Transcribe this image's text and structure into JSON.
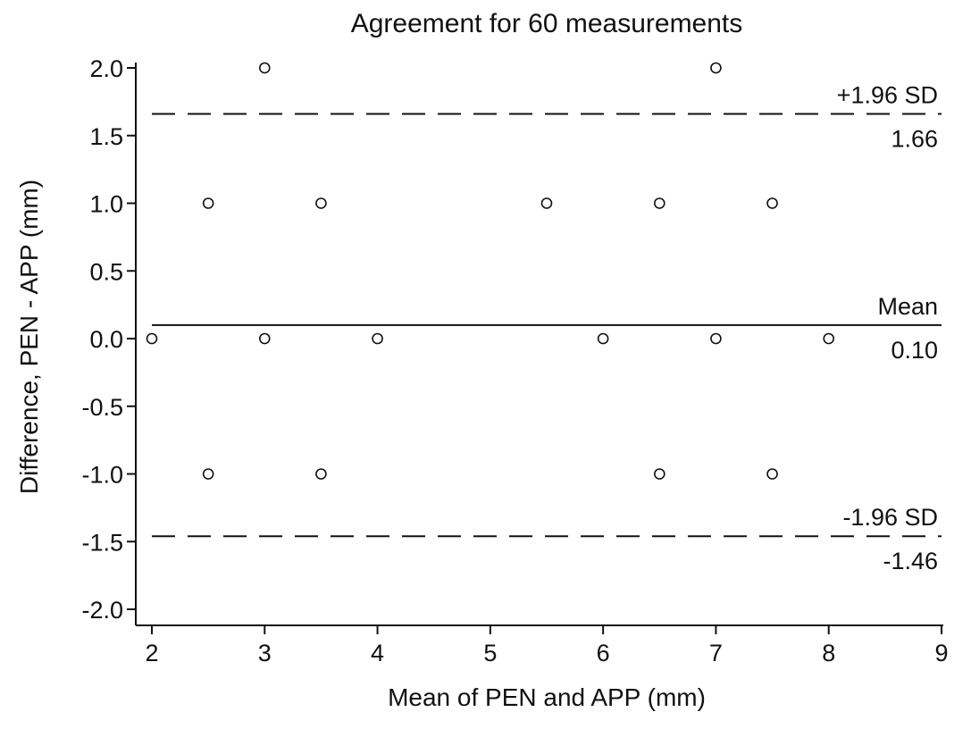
{
  "chart_data": {
    "type": "scatter",
    "title": "Agreement for 60 measurements",
    "xlabel": "Mean of PEN and APP (mm)",
    "ylabel": "Difference, PEN - APP (mm)",
    "xlim": [
      2,
      9
    ],
    "ylim": [
      -2.0,
      2.0
    ],
    "xticks": [
      "2",
      "3",
      "4",
      "5",
      "6",
      "7",
      "8",
      "9"
    ],
    "yticks": [
      "-2.0",
      "-1.5",
      "-1.0",
      "-0.5",
      "0.0",
      "0.5",
      "1.0",
      "1.5",
      "2.0"
    ],
    "grid": false,
    "marker": "open-circle",
    "points": [
      {
        "x": 3,
        "y": 2
      },
      {
        "x": 7,
        "y": 2
      },
      {
        "x": 2.5,
        "y": 1
      },
      {
        "x": 3.5,
        "y": 1
      },
      {
        "x": 5.5,
        "y": 1
      },
      {
        "x": 6.5,
        "y": 1
      },
      {
        "x": 7.5,
        "y": 1
      },
      {
        "x": 2,
        "y": 0
      },
      {
        "x": 3,
        "y": 0
      },
      {
        "x": 4,
        "y": 0
      },
      {
        "x": 6,
        "y": 0
      },
      {
        "x": 7,
        "y": 0
      },
      {
        "x": 8,
        "y": 0
      },
      {
        "x": 2.5,
        "y": -1
      },
      {
        "x": 3.5,
        "y": -1
      },
      {
        "x": 6.5,
        "y": -1
      },
      {
        "x": 7.5,
        "y": -1
      }
    ],
    "reference_lines": [
      {
        "key": "upper-limit",
        "label": "+1.96 SD",
        "value_label": "1.66",
        "y": 1.66,
        "style": "dashed"
      },
      {
        "key": "mean",
        "label": "Mean",
        "value_label": "0.10",
        "y": 0.1,
        "style": "solid"
      },
      {
        "key": "lower-limit",
        "label": "-1.96 SD",
        "value_label": "-1.46",
        "y": -1.46,
        "style": "dashed"
      }
    ]
  }
}
